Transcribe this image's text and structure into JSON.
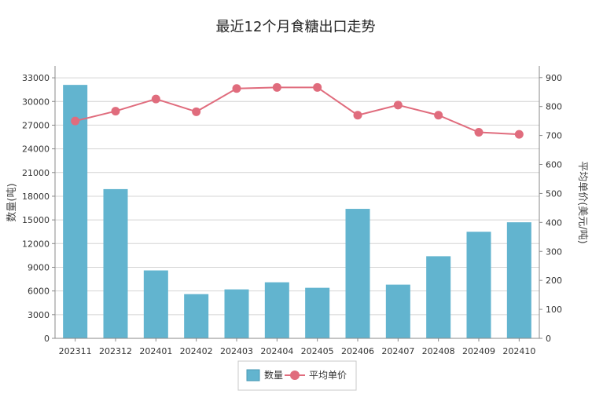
{
  "chart_data": {
    "type": "bar",
    "title": "最近12个月食糖出口走势",
    "categories": [
      "202311",
      "202312",
      "202401",
      "202402",
      "202403",
      "202404",
      "202405",
      "202406",
      "202407",
      "202408",
      "202409",
      "202410"
    ],
    "series": [
      {
        "name": "数量",
        "type": "bar",
        "axis": "left",
        "color": "#62b4cf",
        "values": [
          32100,
          18900,
          8600,
          5600,
          6200,
          7100,
          6400,
          16400,
          6800,
          10400,
          13500,
          14700
        ]
      },
      {
        "name": "平均单价",
        "type": "line",
        "axis": "right",
        "color": "#e06c7d",
        "values": [
          750,
          784,
          826,
          782,
          862,
          866,
          866,
          770,
          805,
          770,
          711,
          704
        ]
      }
    ],
    "ylabel": "数量(吨)",
    "y2label": "平均单价(美元/吨)",
    "ylim": [
      0,
      34500
    ],
    "y2lim": [
      0,
      940
    ],
    "yticks": [
      "0",
      "3000",
      "6000",
      "9000",
      "12000",
      "15000",
      "18000",
      "21000",
      "24000",
      "27000",
      "30000",
      "33000"
    ],
    "y2ticks": [
      "0",
      "100",
      "200",
      "300",
      "400",
      "500",
      "600",
      "700",
      "800",
      "900"
    ],
    "grid": true,
    "legend": "bottom-center"
  }
}
